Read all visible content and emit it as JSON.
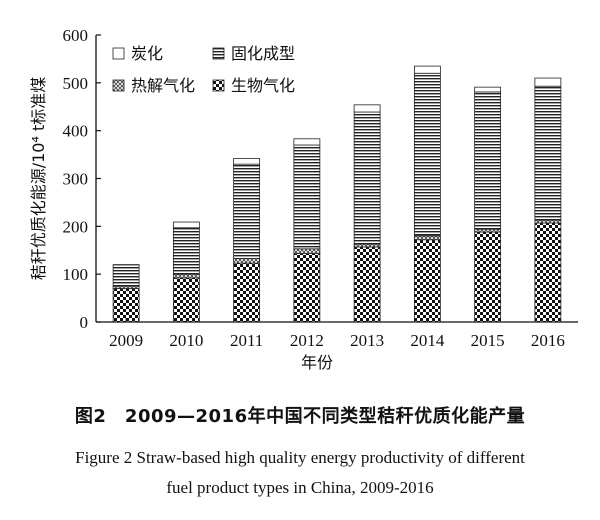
{
  "chart_data": {
    "type": "bar",
    "stacked": true,
    "title": "",
    "xlabel": "年份",
    "ylabel": "秸秆优质化能源/10⁴ t标准煤",
    "ylim": [
      0,
      600
    ],
    "yticks": [
      0,
      100,
      200,
      300,
      400,
      500,
      600
    ],
    "categories": [
      "2009",
      "2010",
      "2011",
      "2012",
      "2013",
      "2014",
      "2015",
      "2016"
    ],
    "series": [
      {
        "name": "生物气化",
        "pattern": "checker",
        "values": [
          70,
          92,
          123,
          143,
          157,
          172,
          188,
          207
        ]
      },
      {
        "name": "热解气化",
        "pattern": "cross",
        "values": [
          5,
          8,
          10,
          10,
          6,
          8,
          6,
          6
        ]
      },
      {
        "name": "固化成型",
        "pattern": "hlines",
        "values": [
          45,
          97,
          197,
          217,
          276,
          340,
          287,
          280
        ]
      },
      {
        "name": "炭化",
        "pattern": "white",
        "values": [
          0,
          12,
          12,
          13,
          15,
          15,
          10,
          17
        ]
      }
    ],
    "legend": {
      "order": [
        "炭化",
        "固化成型",
        "热解气化",
        "生物气化"
      ],
      "placement": "top-left"
    },
    "grid": false
  },
  "caption": {
    "cn": "图2　2009—2016年中国不同类型秸秆优质化能产量",
    "en_line1": "Figure 2   Straw-based high quality energy productivity of different",
    "en_line2": "fuel product types in China, 2009-2016"
  }
}
